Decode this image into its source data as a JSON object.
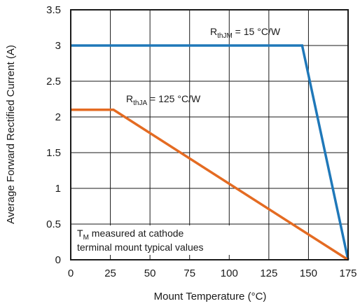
{
  "chart_data": {
    "type": "line",
    "xlabel": "Mount Temperature (°C)",
    "ylabel": "Average Forward Rectified Current (A)",
    "xlim": [
      0,
      175
    ],
    "ylim": [
      0,
      3.5
    ],
    "x_ticks": [
      0,
      25,
      50,
      75,
      100,
      125,
      150,
      175
    ],
    "y_ticks": [
      0,
      0.5,
      1,
      1.5,
      2,
      2.5,
      3,
      3.5
    ],
    "x_tick_labels": [
      "0",
      "25",
      "50",
      "75",
      "100",
      "125",
      "150",
      "175"
    ],
    "y_tick_labels": [
      "0",
      "0.5",
      "1",
      "1.5",
      "2",
      "2.5",
      "3",
      "3.5"
    ],
    "grid": true,
    "series": [
      {
        "name": "RthJM = 15 °C/W",
        "label_main": "R",
        "label_sub": "thJM",
        "label_rest": " = 15 °C/W",
        "color": "#1f78b9",
        "x": [
          0,
          146,
          175
        ],
        "y": [
          3.0,
          3.0,
          0.0
        ]
      },
      {
        "name": "RthJA = 125 °C/W",
        "label_main": "R",
        "label_sub": "thJA",
        "label_rest": " = 125 °C/W",
        "color": "#e46b22",
        "x": [
          0,
          27,
          175
        ],
        "y": [
          2.1,
          2.1,
          0.0
        ]
      }
    ],
    "annotation": {
      "line1_main": "T",
      "line1_sub": "M",
      "line1_rest": " measured at cathode",
      "line2": "terminal mount typical values"
    }
  }
}
